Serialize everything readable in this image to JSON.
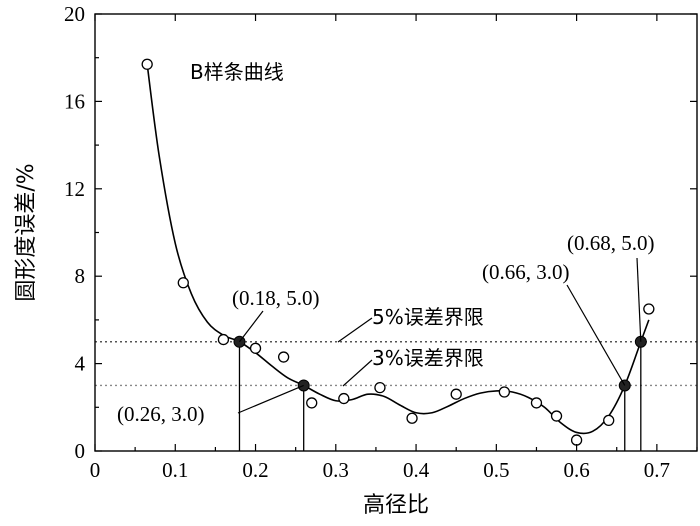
{
  "chart_data": {
    "type": "scatter",
    "xlabel": "高径比",
    "ylabel": "圆形度误差/%",
    "xlim": [
      0,
      0.75
    ],
    "ylim": [
      0,
      20
    ],
    "x_ticks": [
      0,
      0.1,
      0.2,
      0.3,
      0.4,
      0.5,
      0.6,
      0.7
    ],
    "x_tick_labels": [
      "0",
      "0.1",
      "0.2",
      "0.3",
      "0.4",
      "0.5",
      "0.6",
      "0.7"
    ],
    "y_ticks": [
      0,
      4,
      8,
      12,
      16,
      20
    ],
    "y_tick_labels": [
      "0",
      "4",
      "8",
      "12",
      "16",
      "20"
    ],
    "grid": false,
    "series": [
      {
        "marker": "open-circle",
        "x": [
          0.065,
          0.11,
          0.16,
          0.2,
          0.235,
          0.27,
          0.31,
          0.355,
          0.395,
          0.45,
          0.51,
          0.55,
          0.575,
          0.6,
          0.64,
          0.69
        ],
        "y": [
          17.7,
          7.7,
          5.1,
          4.7,
          4.3,
          2.2,
          2.4,
          2.9,
          1.5,
          2.6,
          2.7,
          2.2,
          1.6,
          0.5,
          1.4,
          6.5
        ]
      },
      {
        "marker": "filled-circle",
        "x": [
          0.18,
          0.26,
          0.66,
          0.68
        ],
        "y": [
          5.0,
          3.0,
          3.0,
          5.0
        ]
      }
    ],
    "curve": {
      "label": "B样条曲线",
      "x": [
        0.065,
        0.08,
        0.1,
        0.12,
        0.14,
        0.16,
        0.18,
        0.2,
        0.22,
        0.24,
        0.26,
        0.28,
        0.3,
        0.32,
        0.34,
        0.36,
        0.38,
        0.4,
        0.42,
        0.44,
        0.46,
        0.48,
        0.5,
        0.52,
        0.54,
        0.56,
        0.58,
        0.6,
        0.62,
        0.64,
        0.66,
        0.68,
        0.69
      ],
      "y": [
        17.7,
        13.5,
        9.5,
        7.2,
        5.9,
        5.3,
        5.0,
        4.5,
        3.9,
        3.35,
        3.0,
        2.6,
        2.3,
        2.35,
        2.6,
        2.5,
        2.1,
        1.75,
        1.75,
        2.05,
        2.4,
        2.65,
        2.75,
        2.7,
        2.45,
        2.0,
        1.3,
        0.85,
        0.9,
        1.6,
        3.0,
        5.0,
        6.0
      ]
    },
    "limits": [
      {
        "label": "5%误差界限",
        "y": 5
      },
      {
        "label": "3%误差界限",
        "y": 3
      }
    ],
    "annotations": [
      {
        "text": "(0.18, 5.0)",
        "x": 0.18,
        "y": 5.0
      },
      {
        "text": "(0.26, 3.0)",
        "x": 0.26,
        "y": 3.0
      },
      {
        "text": "(0.66, 3.0)",
        "x": 0.66,
        "y": 3.0
      },
      {
        "text": "(0.68, 5.0)",
        "x": 0.68,
        "y": 5.0
      }
    ]
  }
}
